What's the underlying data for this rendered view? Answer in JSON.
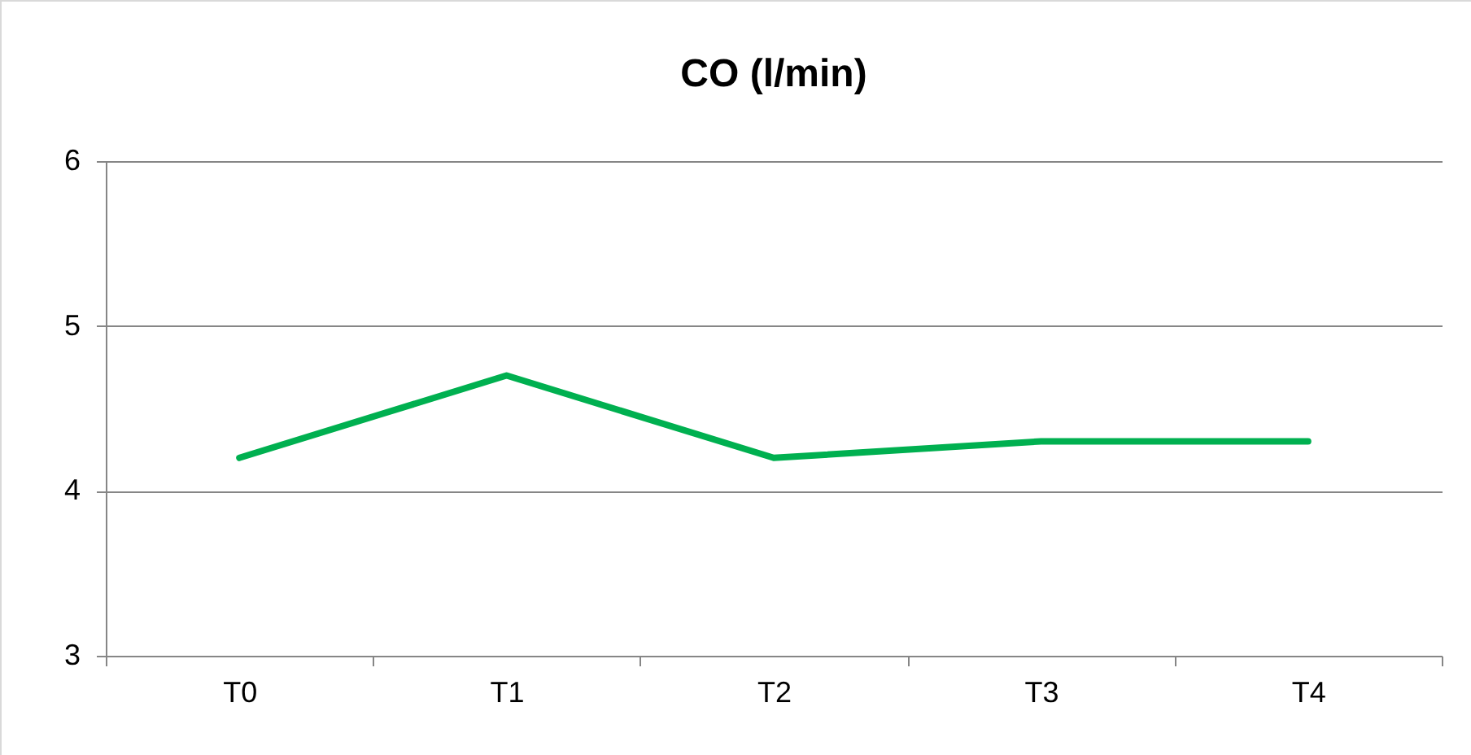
{
  "chart_data": {
    "type": "line",
    "title": "CO (l/min)",
    "categories": [
      "T0",
      "T1",
      "T2",
      "T3",
      "T4"
    ],
    "series": [
      {
        "color": "#00b050",
        "values": [
          4.2,
          4.7,
          4.2,
          4.3,
          4.3
        ]
      }
    ],
    "ylim": [
      3,
      6
    ],
    "yticks": [
      3,
      4,
      5,
      6
    ],
    "grid": "y",
    "legend": false,
    "marker": "none",
    "line_style": "solid"
  }
}
